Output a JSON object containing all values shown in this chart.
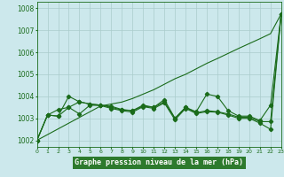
{
  "x": [
    0,
    1,
    2,
    3,
    4,
    5,
    6,
    7,
    8,
    9,
    10,
    11,
    12,
    13,
    14,
    15,
    16,
    17,
    18,
    19,
    20,
    21,
    22,
    23
  ],
  "line1": [
    1002.0,
    1003.15,
    1003.1,
    1004.0,
    1003.75,
    1003.65,
    1003.6,
    1003.55,
    1003.4,
    1003.35,
    1003.6,
    1003.5,
    1003.85,
    1003.0,
    1003.5,
    1003.3,
    1004.1,
    1004.0,
    1003.35,
    1003.1,
    1003.1,
    1002.9,
    1003.6,
    1007.75
  ],
  "line2": [
    1002.0,
    1003.15,
    1003.1,
    1003.5,
    1003.75,
    1003.65,
    1003.6,
    1003.5,
    1003.38,
    1003.35,
    1003.55,
    1003.5,
    1003.75,
    1003.0,
    1003.5,
    1003.25,
    1003.35,
    1003.3,
    1003.2,
    1003.05,
    1003.05,
    1002.85,
    1002.85,
    1007.75
  ],
  "line3": [
    1002.0,
    1003.15,
    1003.4,
    1003.5,
    1003.2,
    1003.6,
    1003.58,
    1003.45,
    1003.35,
    1003.28,
    1003.53,
    1003.45,
    1003.7,
    1002.93,
    1003.45,
    1003.22,
    1003.3,
    1003.28,
    1003.15,
    1003.0,
    1003.0,
    1002.78,
    1002.5,
    1007.75
  ],
  "line_trend": [
    1002.0,
    1002.26,
    1002.52,
    1002.78,
    1003.04,
    1003.3,
    1003.56,
    1003.65,
    1003.74,
    1003.9,
    1004.1,
    1004.3,
    1004.55,
    1004.8,
    1005.0,
    1005.25,
    1005.5,
    1005.72,
    1005.95,
    1006.18,
    1006.4,
    1006.62,
    1006.85,
    1007.75
  ],
  "background_color": "#cce8ec",
  "grid_color": "#aacccc",
  "line_color": "#1a6b1a",
  "bottom_bar_color": "#2d7a2d",
  "xlabel": "Graphe pression niveau de la mer (hPa)",
  "ylim": [
    1001.7,
    1008.3
  ],
  "yticks": [
    1002,
    1003,
    1004,
    1005,
    1006,
    1007,
    1008
  ],
  "xlim": [
    0,
    23
  ],
  "tick_color": "#1a6b1a",
  "xlabel_color": "#ffffff"
}
